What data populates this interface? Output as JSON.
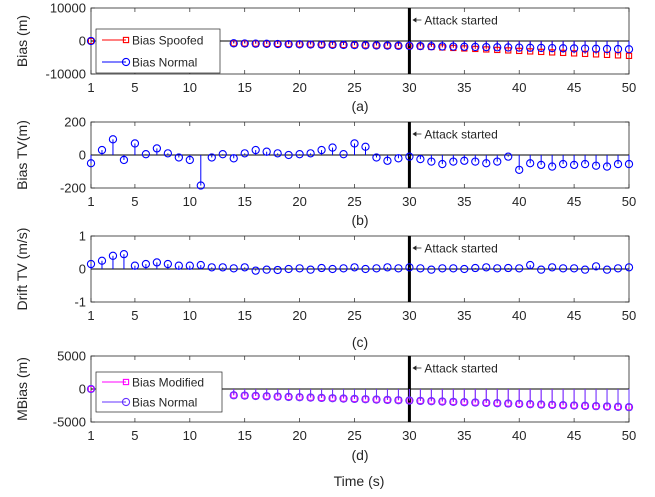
{
  "figure": {
    "bottom_label": "Time (s)",
    "annotation_text": "Attack started",
    "attack_x": 30
  },
  "chart_data": [
    {
      "type": "stem",
      "panel_label": "(a)",
      "ylabel": "Bias (m)",
      "xlim": [
        1,
        50
      ],
      "ylim": [
        -10000,
        10000
      ],
      "xticks": [
        1,
        5,
        10,
        15,
        20,
        25,
        30,
        35,
        40,
        45,
        50
      ],
      "xtick_labels": [
        "1",
        "5",
        "10",
        "15",
        "20",
        "25",
        "30",
        "35",
        "40",
        "45",
        "50"
      ],
      "yticks": [
        -10000,
        0,
        10000
      ],
      "ytick_labels": [
        "-10000",
        "0",
        "10000"
      ],
      "legend": "top-left",
      "series": [
        {
          "name": "Bias Spoofed",
          "color": "#ff0000",
          "marker": "square",
          "x": [
            1,
            14,
            15,
            16,
            17,
            18,
            19,
            20,
            21,
            22,
            23,
            24,
            25,
            26,
            27,
            28,
            29,
            30,
            31,
            32,
            33,
            34,
            35,
            36,
            37,
            38,
            39,
            40,
            41,
            42,
            43,
            44,
            45,
            46,
            47,
            48,
            49,
            50
          ],
          "values": [
            0,
            -700,
            -750,
            -800,
            -850,
            -900,
            -950,
            -1000,
            -1050,
            -1100,
            -1150,
            -1200,
            -1250,
            -1300,
            -1350,
            -1400,
            -1450,
            -1500,
            -1650,
            -1800,
            -1950,
            -2100,
            -2250,
            -2400,
            -2550,
            -2700,
            -2850,
            -3000,
            -3150,
            -3300,
            -3450,
            -3600,
            -3750,
            -3900,
            -4050,
            -4200,
            -4350,
            -4500
          ]
        },
        {
          "name": "Bias Normal",
          "color": "#0000ff",
          "marker": "circle",
          "x": [
            1,
            14,
            15,
            16,
            17,
            18,
            19,
            20,
            21,
            22,
            23,
            24,
            25,
            26,
            27,
            28,
            29,
            30,
            31,
            32,
            33,
            34,
            35,
            36,
            37,
            38,
            39,
            40,
            41,
            42,
            43,
            44,
            45,
            46,
            47,
            48,
            49,
            50
          ],
          "values": [
            0,
            -700,
            -750,
            -800,
            -850,
            -900,
            -950,
            -1000,
            -1050,
            -1100,
            -1150,
            -1200,
            -1250,
            -1300,
            -1350,
            -1400,
            -1450,
            -1500,
            -1550,
            -1600,
            -1650,
            -1700,
            -1750,
            -1800,
            -1850,
            -1900,
            -1950,
            -2000,
            -2050,
            -2100,
            -2150,
            -2200,
            -2250,
            -2300,
            -2350,
            -2400,
            -2450,
            -2500
          ]
        }
      ]
    },
    {
      "type": "stem",
      "panel_label": "(b)",
      "ylabel": "Bias TV(m)",
      "xlim": [
        1,
        50
      ],
      "ylim": [
        -200,
        200
      ],
      "xticks": [
        1,
        5,
        10,
        15,
        20,
        25,
        30,
        35,
        40,
        45,
        50
      ],
      "xtick_labels": [
        "1",
        "5",
        "10",
        "15",
        "20",
        "25",
        "30",
        "35",
        "40",
        "45",
        "50"
      ],
      "yticks": [
        -200,
        0,
        200
      ],
      "ytick_labels": [
        "-200",
        "0",
        "200"
      ],
      "series": [
        {
          "color": "#0000ff",
          "marker": "circle",
          "x": [
            1,
            2,
            3,
            4,
            5,
            6,
            7,
            8,
            9,
            10,
            11,
            12,
            13,
            14,
            15,
            16,
            17,
            18,
            19,
            20,
            21,
            22,
            23,
            24,
            25,
            26,
            27,
            28,
            29,
            30,
            31,
            32,
            33,
            34,
            35,
            36,
            37,
            38,
            39,
            40,
            41,
            42,
            43,
            44,
            45,
            46,
            47,
            48,
            49,
            50
          ],
          "values": [
            -50,
            30,
            95,
            -30,
            70,
            5,
            40,
            10,
            -15,
            -30,
            -185,
            -15,
            5,
            -20,
            10,
            30,
            20,
            10,
            0,
            5,
            10,
            30,
            45,
            5,
            70,
            50,
            -15,
            -35,
            -20,
            -10,
            -25,
            -40,
            -55,
            -40,
            -35,
            -40,
            -50,
            -40,
            -10,
            -90,
            -50,
            -60,
            -70,
            -55,
            -60,
            -55,
            -65,
            -70,
            -55,
            -55
          ]
        }
      ]
    },
    {
      "type": "stem",
      "panel_label": "(c)",
      "ylabel": "Drift TV (m/s)",
      "xlim": [
        1,
        50
      ],
      "ylim": [
        -1,
        1
      ],
      "xticks": [
        1,
        5,
        10,
        15,
        20,
        25,
        30,
        35,
        40,
        45,
        50
      ],
      "xtick_labels": [
        "1",
        "5",
        "10",
        "15",
        "20",
        "25",
        "30",
        "35",
        "40",
        "45",
        "50"
      ],
      "yticks": [
        -1,
        0,
        1
      ],
      "ytick_labels": [
        "-1",
        "0",
        "1"
      ],
      "series": [
        {
          "color": "#0000ff",
          "marker": "circle",
          "x": [
            1,
            2,
            3,
            4,
            5,
            6,
            7,
            8,
            9,
            10,
            11,
            12,
            13,
            14,
            15,
            16,
            17,
            18,
            19,
            20,
            21,
            22,
            23,
            24,
            25,
            26,
            27,
            28,
            29,
            30,
            31,
            32,
            33,
            34,
            35,
            36,
            37,
            38,
            39,
            40,
            41,
            42,
            43,
            44,
            45,
            46,
            47,
            48,
            49,
            50
          ],
          "values": [
            0.15,
            0.25,
            0.4,
            0.45,
            0.1,
            0.15,
            0.2,
            0.15,
            0.1,
            0.1,
            0.12,
            0.05,
            0.05,
            0.02,
            0.05,
            -0.05,
            -0.02,
            -0.03,
            0.0,
            0.02,
            -0.02,
            0.03,
            0.0,
            0.02,
            0.05,
            0.0,
            0.02,
            0.05,
            0.02,
            0.05,
            0.02,
            -0.02,
            0.02,
            0.02,
            0.0,
            0.03,
            0.05,
            0.02,
            0.03,
            0.02,
            0.12,
            -0.02,
            0.05,
            0.02,
            0.02,
            -0.02,
            0.08,
            -0.02,
            0.02,
            0.05
          ]
        }
      ]
    },
    {
      "type": "stem",
      "panel_label": "(d)",
      "ylabel": "MBias (m)",
      "xlim": [
        1,
        50
      ],
      "ylim": [
        -5000,
        5000
      ],
      "xticks": [
        1,
        5,
        10,
        15,
        20,
        25,
        30,
        35,
        40,
        45,
        50
      ],
      "xtick_labels": [
        "1",
        "5",
        "10",
        "15",
        "20",
        "25",
        "30",
        "35",
        "40",
        "45",
        "50"
      ],
      "yticks": [
        -5000,
        0,
        5000
      ],
      "ytick_labels": [
        "-5000",
        "0",
        "5000"
      ],
      "legend": "top-left",
      "series": [
        {
          "name": "Bias Modified",
          "color": "#ff00ff",
          "marker": "square",
          "x": [
            1,
            14,
            15,
            16,
            17,
            18,
            19,
            20,
            21,
            22,
            23,
            24,
            25,
            26,
            27,
            28,
            29,
            30,
            31,
            32,
            33,
            34,
            35,
            36,
            37,
            38,
            39,
            40,
            41,
            42,
            43,
            44,
            45,
            46,
            47,
            48,
            49,
            50
          ],
          "values": [
            0,
            -950,
            -1000,
            -1050,
            -1100,
            -1150,
            -1200,
            -1250,
            -1300,
            -1350,
            -1400,
            -1450,
            -1500,
            -1550,
            -1600,
            -1650,
            -1700,
            -1750,
            -1800,
            -1850,
            -1900,
            -1950,
            -2000,
            -2050,
            -2100,
            -2150,
            -2200,
            -2250,
            -2300,
            -2350,
            -2400,
            -2450,
            -2500,
            -2550,
            -2600,
            -2650,
            -2700,
            -2750
          ]
        },
        {
          "name": "Bias Normal",
          "color": "#6633ff",
          "marker": "circle",
          "x": [
            1,
            14,
            15,
            16,
            17,
            18,
            19,
            20,
            21,
            22,
            23,
            24,
            25,
            26,
            27,
            28,
            29,
            30,
            31,
            32,
            33,
            34,
            35,
            36,
            37,
            38,
            39,
            40,
            41,
            42,
            43,
            44,
            45,
            46,
            47,
            48,
            49,
            50
          ],
          "values": [
            0,
            -950,
            -1000,
            -1050,
            -1100,
            -1150,
            -1200,
            -1250,
            -1300,
            -1350,
            -1400,
            -1450,
            -1500,
            -1550,
            -1600,
            -1650,
            -1700,
            -1750,
            -1800,
            -1850,
            -1900,
            -1950,
            -2000,
            -2050,
            -2100,
            -2150,
            -2200,
            -2250,
            -2300,
            -2350,
            -2400,
            -2450,
            -2500,
            -2550,
            -2600,
            -2650,
            -2700,
            -2750
          ]
        }
      ]
    }
  ]
}
